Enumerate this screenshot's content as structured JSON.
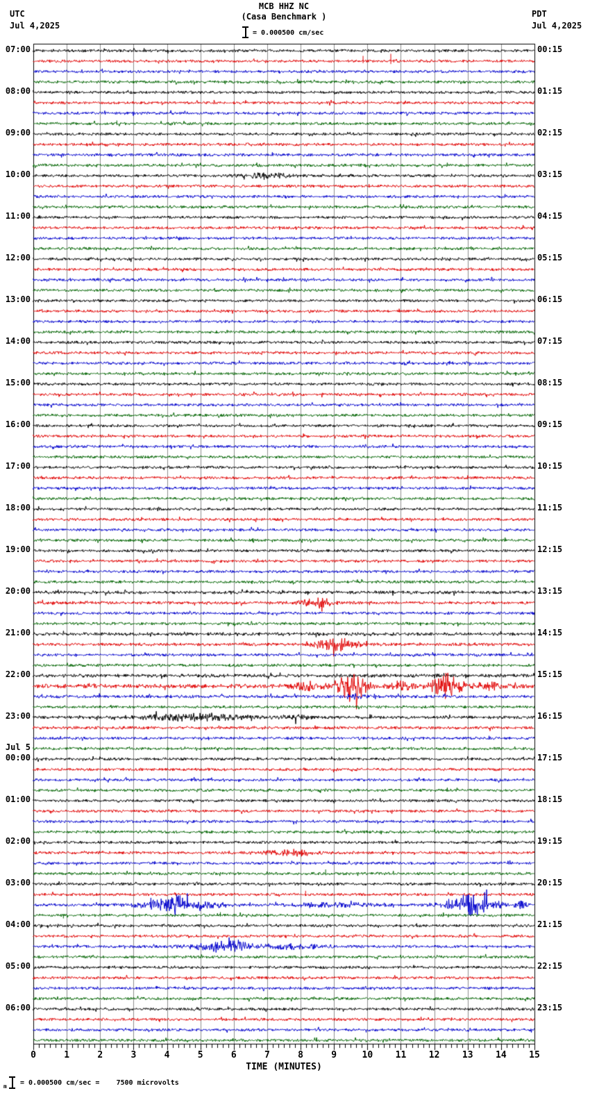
{
  "header": {
    "station_line": "MCB HHZ NC",
    "name_line": "(Casa Benchmark )",
    "scale_text": "= 0.000500 cm/sec",
    "tz_left": "UTC",
    "date_left": "Jul 4,2025",
    "tz_right": "PDT",
    "date_right": "Jul 4,2025"
  },
  "footer": {
    "prefix": "m",
    "note_text": "= 0.000500 cm/sec =    7500 microvolts"
  },
  "chart_data": {
    "type": "line",
    "kind": "helicorder-seismogram",
    "title": "MCB HHZ NC (Casa Benchmark )",
    "xlabel": "TIME (MINUTES)",
    "x_range_minutes": [
      0,
      15
    ],
    "x_ticks": [
      0,
      1,
      2,
      3,
      4,
      5,
      6,
      7,
      8,
      9,
      10,
      11,
      12,
      13,
      14,
      15
    ],
    "minor_ticks_per_minute": 6,
    "minutes_per_row": 15,
    "rows_per_hour": 4,
    "trace_color_cycle": [
      "black",
      "red",
      "blue",
      "green"
    ],
    "colors": {
      "k": "#000000",
      "r": "#e00000",
      "b": "#0000cc",
      "g": "#006400",
      "grid": "#8c8c8c",
      "border": "#000000"
    },
    "legend": "bursts: [startMin,endMin,peakMin,amplitudePx]; spikes: [minute,amplitudePx]",
    "rows": [
      {
        "c": "k",
        "utc": "07:00",
        "pdt": "00:15"
      },
      {
        "c": "r",
        "spikes": [
          [
            9.87,
            5
          ],
          [
            10.7,
            7
          ]
        ]
      },
      {
        "c": "b"
      },
      {
        "c": "g"
      },
      {
        "c": "k",
        "utc": "08:00",
        "pdt": "01:15"
      },
      {
        "c": "r"
      },
      {
        "c": "b"
      },
      {
        "c": "g",
        "spikes": [
          [
            2.5,
            3
          ]
        ]
      },
      {
        "c": "k",
        "utc": "09:00",
        "pdt": "02:15"
      },
      {
        "c": "r"
      },
      {
        "c": "b"
      },
      {
        "c": "g"
      },
      {
        "c": "k",
        "utc": "10:00",
        "pdt": "03:15",
        "bursts": [
          [
            5.6,
            8.1,
            7.0,
            1.6
          ]
        ]
      },
      {
        "c": "r"
      },
      {
        "c": "b"
      },
      {
        "c": "g"
      },
      {
        "c": "k",
        "utc": "11:00",
        "pdt": "04:15"
      },
      {
        "c": "r"
      },
      {
        "c": "b"
      },
      {
        "c": "g"
      },
      {
        "c": "k",
        "utc": "12:00",
        "pdt": "05:15"
      },
      {
        "c": "r"
      },
      {
        "c": "b"
      },
      {
        "c": "g"
      },
      {
        "c": "k",
        "utc": "13:00",
        "pdt": "06:15"
      },
      {
        "c": "r"
      },
      {
        "c": "b"
      },
      {
        "c": "g"
      },
      {
        "c": "k",
        "utc": "14:00",
        "pdt": "07:15"
      },
      {
        "c": "r"
      },
      {
        "c": "b"
      },
      {
        "c": "g"
      },
      {
        "c": "k",
        "utc": "15:00",
        "pdt": "08:15"
      },
      {
        "c": "r"
      },
      {
        "c": "b"
      },
      {
        "c": "g"
      },
      {
        "c": "k",
        "utc": "16:00",
        "pdt": "09:15"
      },
      {
        "c": "r"
      },
      {
        "c": "b"
      },
      {
        "c": "g"
      },
      {
        "c": "k",
        "utc": "17:00",
        "pdt": "10:15"
      },
      {
        "c": "r"
      },
      {
        "c": "b"
      },
      {
        "c": "g"
      },
      {
        "c": "k",
        "utc": "18:00",
        "pdt": "11:15"
      },
      {
        "c": "r"
      },
      {
        "c": "b"
      },
      {
        "c": "g"
      },
      {
        "c": "k",
        "utc": "19:00",
        "pdt": "12:15"
      },
      {
        "c": "r"
      },
      {
        "c": "b"
      },
      {
        "c": "g"
      },
      {
        "c": "k",
        "utc": "20:00",
        "pdt": "13:15",
        "a": 1.15
      },
      {
        "c": "r",
        "a": 1.1,
        "bursts": [
          [
            7.9,
            9.4,
            8.5,
            3.5
          ]
        ]
      },
      {
        "c": "b"
      },
      {
        "c": "g"
      },
      {
        "c": "k",
        "utc": "21:00",
        "pdt": "14:15",
        "a": 1.15
      },
      {
        "c": "r",
        "a": 1.1,
        "bursts": [
          [
            8.3,
            10.3,
            9.1,
            4.5
          ]
        ]
      },
      {
        "c": "b"
      },
      {
        "c": "g"
      },
      {
        "c": "k",
        "utc": "22:00",
        "pdt": "15:15",
        "a": 1.2
      },
      {
        "c": "r",
        "a": 1.5,
        "bursts": [
          [
            7.3,
            9.2,
            8.2,
            2.5
          ],
          [
            9.25,
            10.6,
            9.55,
            12
          ],
          [
            10.6,
            11.75,
            11.0,
            3
          ],
          [
            11.75,
            13.2,
            12.35,
            10
          ],
          [
            13.2,
            15,
            13.6,
            2.2
          ]
        ]
      },
      {
        "c": "b",
        "a": 1.1,
        "bursts": [
          [
            9.3,
            10.3,
            9.6,
            1.5
          ]
        ]
      },
      {
        "c": "g"
      },
      {
        "c": "k",
        "utc": "23:00",
        "pdt": "16:15",
        "a": 1.1,
        "bursts": [
          [
            2.2,
            7.3,
            4.8,
            2.2
          ],
          [
            7.3,
            8.7,
            7.8,
            1.5
          ]
        ]
      },
      {
        "c": "r",
        "a": 1.1
      },
      {
        "c": "b"
      },
      {
        "c": "g"
      },
      {
        "c": "k",
        "utc": "00:00",
        "date": "Jul 5",
        "pdt": "17:15"
      },
      {
        "c": "r"
      },
      {
        "c": "b"
      },
      {
        "c": "g"
      },
      {
        "c": "k",
        "utc": "01:00",
        "pdt": "18:15"
      },
      {
        "c": "r"
      },
      {
        "c": "b"
      },
      {
        "c": "g"
      },
      {
        "c": "k",
        "utc": "02:00",
        "pdt": "19:15"
      },
      {
        "c": "r",
        "bursts": [
          [
            6.7,
            9.4,
            7.6,
            2.2
          ]
        ]
      },
      {
        "c": "b"
      },
      {
        "c": "g",
        "spikes": [
          [
            8.75,
            4
          ]
        ]
      },
      {
        "c": "k",
        "utc": "03:00",
        "pdt": "20:15"
      },
      {
        "c": "r",
        "spikes": [
          [
            8.15,
            3.5
          ]
        ]
      },
      {
        "c": "b",
        "bursts": [
          [
            2.8,
            6.7,
            4.4,
            5
          ],
          [
            4.0,
            4.6,
            4.3,
            3
          ],
          [
            6.7,
            11.7,
            9.0,
            1.2
          ],
          [
            11.8,
            14.4,
            13.1,
            8
          ],
          [
            14.4,
            15,
            14.6,
            2.5
          ]
        ]
      },
      {
        "c": "g",
        "spikes": [
          [
            0.9,
            -3
          ],
          [
            5.6,
            3
          ]
        ]
      },
      {
        "c": "k",
        "utc": "04:00",
        "pdt": "21:15"
      },
      {
        "c": "r"
      },
      {
        "c": "b",
        "bursts": [
          [
            4.1,
            7.3,
            5.7,
            4
          ],
          [
            7.3,
            9.6,
            7.9,
            2
          ]
        ]
      },
      {
        "c": "g"
      },
      {
        "c": "k",
        "utc": "05:00",
        "pdt": "22:15"
      },
      {
        "c": "r"
      },
      {
        "c": "b"
      },
      {
        "c": "g"
      },
      {
        "c": "k",
        "utc": "06:00",
        "pdt": "23:15"
      },
      {
        "c": "r"
      },
      {
        "c": "b"
      },
      {
        "c": "g"
      }
    ]
  }
}
